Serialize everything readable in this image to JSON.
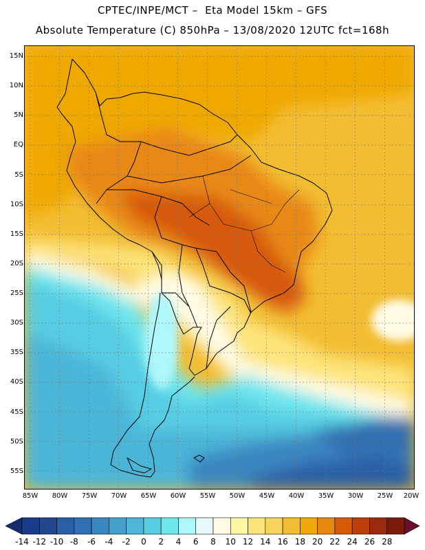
{
  "header": {
    "title_line1": "CPTEC/INPE/MCT –  Eta Model 15km – GFS",
    "title_line2": "Absolute Temperature (C) 850hPa – 13/08/2020 12UTC fct=168h"
  },
  "map": {
    "region": "South America",
    "variable": "Absolute Temperature (C) 850hPa",
    "lat_labels": [
      "15N",
      "10N",
      "5N",
      "EQ",
      "5S",
      "10S",
      "15S",
      "20S",
      "25S",
      "30S",
      "35S",
      "40S",
      "45S",
      "50S",
      "55S"
    ],
    "lon_labels": [
      "85W",
      "80W",
      "75W",
      "70W",
      "65W",
      "60W",
      "55W",
      "50W",
      "45W",
      "40W",
      "35W",
      "30W",
      "25W",
      "20W"
    ]
  },
  "colorbar": {
    "labels": [
      "-14",
      "-12",
      "-10",
      "-8",
      "-6",
      "-4",
      "-2",
      "0",
      "2",
      "4",
      "6",
      "8",
      "10",
      "12",
      "14",
      "16",
      "18",
      "20",
      "22",
      "24",
      "26",
      "28"
    ],
    "colors": [
      "#1a3a8a",
      "#22478f",
      "#2a5ea5",
      "#3070b0",
      "#3a86c0",
      "#44a0cd",
      "#4cb5d8",
      "#56cde2",
      "#6ee6ee",
      "#aef7fb",
      "#e5f9fb",
      "#fffbe5",
      "#fff6a6",
      "#fde47a",
      "#f8d45c",
      "#f2bd32",
      "#efa806",
      "#e88812",
      "#d65a0a",
      "#bc3f0c",
      "#9e2a0d",
      "#7a1c0c"
    ],
    "low_color": "#152d6e",
    "high_color": "#6b0f2a"
  }
}
